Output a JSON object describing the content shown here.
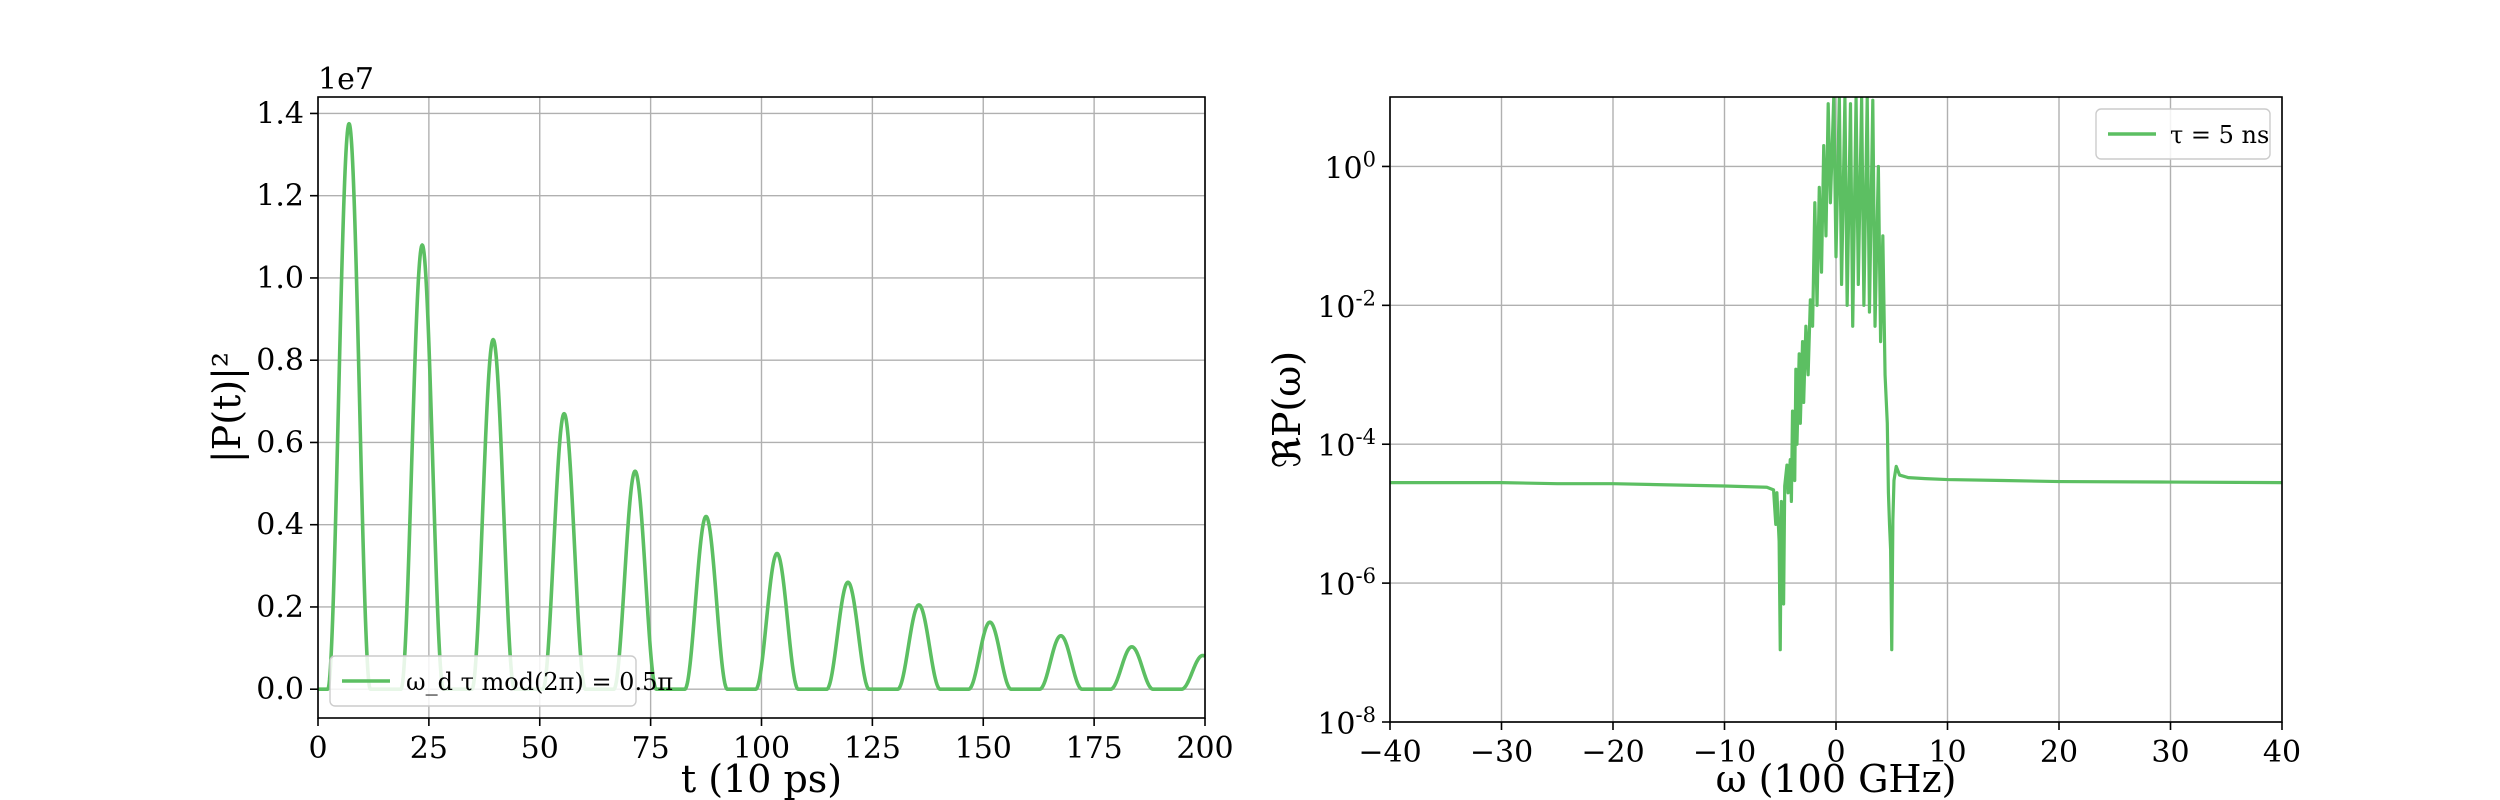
{
  "chart_data": [
    {
      "type": "line",
      "title": "",
      "xlabel": "t (10 ps)",
      "ylabel": "|P(t)|²",
      "ylabel_exponent": "1e7",
      "xlim": [
        0,
        200
      ],
      "ylim": [
        -0.07,
        1.44
      ],
      "y_scale_factor": 10000000,
      "xticks": [
        0,
        25,
        50,
        75,
        100,
        125,
        150,
        175,
        200
      ],
      "xtick_labels": [
        "0",
        "25",
        "50",
        "75",
        "100",
        "125",
        "150",
        "175",
        "200"
      ],
      "yticks": [
        0.0,
        0.2,
        0.4,
        0.6,
        0.8,
        1.0,
        1.2,
        1.4
      ],
      "ytick_labels": [
        "0.0",
        "0.2",
        "0.4",
        "0.6",
        "0.8",
        "1.0",
        "1.2",
        "1.4"
      ],
      "grid": true,
      "legend_position": "lower-left",
      "color": "#5cbf62",
      "series": [
        {
          "name": "ω_d τ mod(2π) = 0.5π",
          "pulse_period": 16,
          "pulse_half_width": 4.8,
          "peaks": [
            {
              "t": 7,
              "value": 1.375
            },
            {
              "t": 23.5,
              "value": 1.08
            },
            {
              "t": 39.5,
              "value": 0.85
            },
            {
              "t": 55.5,
              "value": 0.67
            },
            {
              "t": 71.5,
              "value": 0.53
            },
            {
              "t": 87.5,
              "value": 0.42
            },
            {
              "t": 103.5,
              "value": 0.33
            },
            {
              "t": 119.5,
              "value": 0.26
            },
            {
              "t": 135.5,
              "value": 0.205
            },
            {
              "t": 151.5,
              "value": 0.163
            },
            {
              "t": 167.5,
              "value": 0.13
            },
            {
              "t": 183.5,
              "value": 0.103
            },
            {
              "t": 199.5,
              "value": 0.082
            }
          ]
        }
      ]
    },
    {
      "type": "line",
      "title": "",
      "xlabel": "ω (100 GHz)",
      "ylabel": "ℜP(ω)",
      "xlim": [
        -40,
        40
      ],
      "ylim": [
        1e-08,
        10
      ],
      "y_scale": "log",
      "xticks": [
        -40,
        -30,
        -20,
        -10,
        0,
        10,
        20,
        30,
        40
      ],
      "xtick_labels": [
        "−40",
        "−30",
        "−20",
        "−10",
        "0",
        "10",
        "20",
        "30",
        "40"
      ],
      "yticks": [
        1e-08,
        1e-06,
        0.0001,
        0.01,
        1
      ],
      "ytick_labels": [
        {
          "base": "10",
          "exp": "-8"
        },
        {
          "base": "10",
          "exp": "-6"
        },
        {
          "base": "10",
          "exp": "-4"
        },
        {
          "base": "10",
          "exp": "-2"
        },
        {
          "base": "10",
          "exp": "0"
        }
      ],
      "grid": true,
      "legend_position": "top-right",
      "color": "#5cbf62",
      "series": [
        {
          "name": "τ = 5 ns",
          "points": [
            [
              -40,
              2.8e-05
            ],
            [
              -30,
              2.8e-05
            ],
            [
              -25,
              2.7e-05
            ],
            [
              -20,
              2.7e-05
            ],
            [
              -15,
              2.6e-05
            ],
            [
              -10,
              2.5e-05
            ],
            [
              -6.2,
              2.4e-05
            ],
            [
              -5.6,
              2.2e-05
            ],
            [
              -5.4,
              7e-06
            ],
            [
              -5.3,
              2e-05
            ],
            [
              -5.1,
              4e-06
            ],
            [
              -5.0,
              1.1e-07
            ],
            [
              -4.9,
              1.5e-05
            ],
            [
              -4.7,
              5e-07
            ],
            [
              -4.6,
              2.5e-05
            ],
            [
              -4.4,
              5e-05
            ],
            [
              -4.3,
              2e-05
            ],
            [
              -4.1,
              6e-05
            ],
            [
              -4.0,
              1.5e-05
            ],
            [
              -3.9,
              0.0003
            ],
            [
              -3.7,
              3e-05
            ],
            [
              -3.6,
              0.0012
            ],
            [
              -3.5,
              0.0001
            ],
            [
              -3.3,
              0.002
            ],
            [
              -3.2,
              0.0002
            ],
            [
              -3.0,
              0.003
            ],
            [
              -2.9,
              0.0004
            ],
            [
              -2.7,
              0.005
            ],
            [
              -2.5,
              0.001
            ],
            [
              -2.3,
              0.012
            ],
            [
              -2.1,
              0.005
            ],
            [
              -1.9,
              0.3
            ],
            [
              -1.7,
              0.01
            ],
            [
              -1.5,
              0.5
            ],
            [
              -1.3,
              0.03
            ],
            [
              -1.1,
              2
            ],
            [
              -0.9,
              0.1
            ],
            [
              -0.7,
              8
            ],
            [
              -0.5,
              0.3
            ],
            [
              -0.2,
              10
            ],
            [
              0.0,
              0.05
            ],
            [
              0.3,
              10
            ],
            [
              0.5,
              0.02
            ],
            [
              0.8,
              10
            ],
            [
              1.0,
              0.01
            ],
            [
              1.3,
              8
            ],
            [
              1.5,
              0.005
            ],
            [
              1.8,
              10
            ],
            [
              2.0,
              0.02
            ],
            [
              2.3,
              10
            ],
            [
              2.5,
              0.01
            ],
            [
              2.8,
              10
            ],
            [
              3.0,
              0.008
            ],
            [
              3.3,
              9
            ],
            [
              3.5,
              0.005
            ],
            [
              3.8,
              1
            ],
            [
              4.0,
              0.003
            ],
            [
              4.2,
              0.1
            ],
            [
              4.4,
              0.001
            ],
            [
              4.6,
              0.0002
            ],
            [
              4.7,
              2e-05
            ],
            [
              4.8,
              7e-06
            ],
            [
              4.9,
              3e-06
            ],
            [
              5.0,
              1.1e-07
            ],
            [
              5.1,
              8e-06
            ],
            [
              5.2,
              3e-05
            ],
            [
              5.4,
              4.8e-05
            ],
            [
              5.7,
              3.6e-05
            ],
            [
              6.5,
              3.3e-05
            ],
            [
              8,
              3.2e-05
            ],
            [
              10,
              3.1e-05
            ],
            [
              15,
              3e-05
            ],
            [
              20,
              2.9e-05
            ],
            [
              30,
              2.85e-05
            ],
            [
              40,
              2.8e-05
            ]
          ]
        }
      ]
    }
  ]
}
